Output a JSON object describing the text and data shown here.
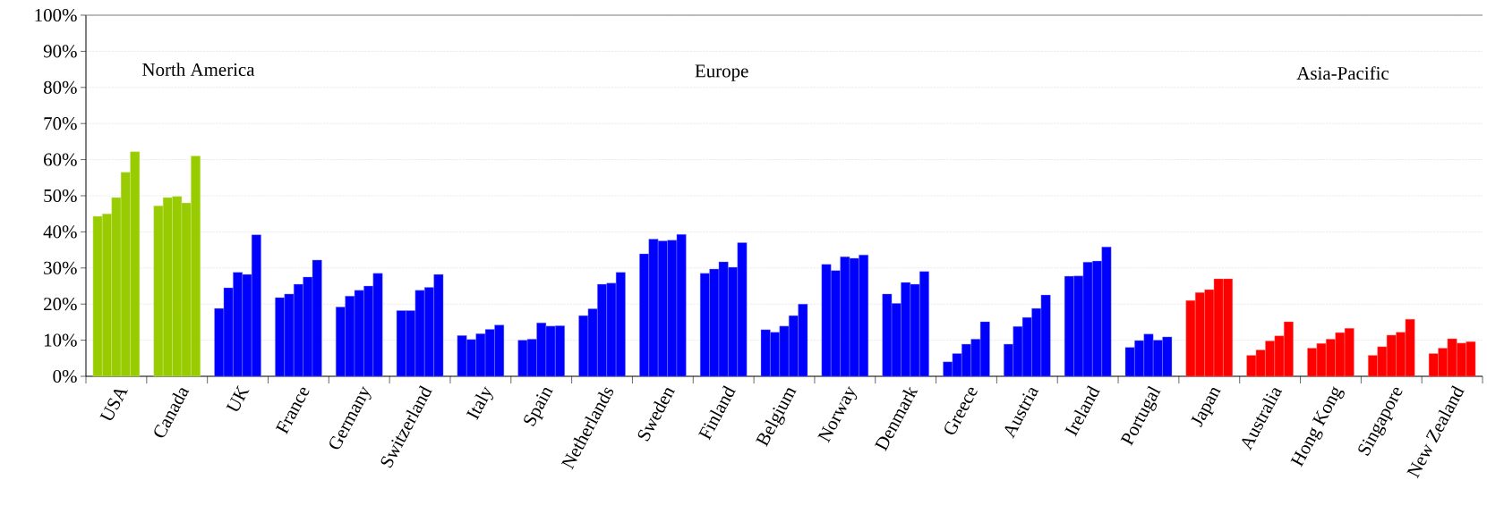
{
  "chart_data": {
    "type": "bar",
    "categories": [
      "USA",
      "Canada",
      "UK",
      "France",
      "Germany",
      "Switzerland",
      "Italy",
      "Spain",
      "Netherlands",
      "Sweden",
      "Finland",
      "Belgium",
      "Norway",
      "Denmark",
      "Greece",
      "Austria",
      "Ireland",
      "Portugal",
      "Japan",
      "Australia",
      "Hong Kong",
      "Singapore",
      "New Zealand"
    ],
    "series": [
      {
        "colors": [
          "#99cc00",
          "#99cc00",
          "#0000ff",
          "#0000ff",
          "#0000ff",
          "#0000ff",
          "#0000ff",
          "#0000ff",
          "#0000ff",
          "#0000ff",
          "#0000ff",
          "#0000ff",
          "#0000ff",
          "#0000ff",
          "#0000ff",
          "#0000ff",
          "#0000ff",
          "#0000ff",
          "#ff0000",
          "#ff0000",
          "#ff0000",
          "#ff0000",
          "#ff0000"
        ],
        "values": [
          44.3,
          47.2,
          18.8,
          21.8,
          19.2,
          18.2,
          11.3,
          10,
          16.8,
          33.9,
          28.5,
          12.9,
          31,
          22.8,
          4,
          8.9,
          27.7,
          8,
          21,
          5.8,
          7.8,
          5.8,
          6.3
        ]
      },
      {
        "colors": [
          "#99cc00",
          "#99cc00",
          "#0000ff",
          "#0000ff",
          "#0000ff",
          "#0000ff",
          "#0000ff",
          "#0000ff",
          "#0000ff",
          "#0000ff",
          "#0000ff",
          "#0000ff",
          "#0000ff",
          "#0000ff",
          "#0000ff",
          "#0000ff",
          "#0000ff",
          "#0000ff",
          "#ff0000",
          "#ff0000",
          "#ff0000",
          "#ff0000",
          "#ff0000"
        ],
        "values": [
          45,
          49.5,
          24.5,
          22.8,
          22.2,
          18.2,
          10.2,
          10.3,
          18.7,
          38,
          29.7,
          12.2,
          29.3,
          20.2,
          6.3,
          13.8,
          27.8,
          9.9,
          23.2,
          7.3,
          9.1,
          8.2,
          7.8
        ]
      },
      {
        "colors": [
          "#99cc00",
          "#99cc00",
          "#0000ff",
          "#0000ff",
          "#0000ff",
          "#0000ff",
          "#0000ff",
          "#0000ff",
          "#0000ff",
          "#0000ff",
          "#0000ff",
          "#0000ff",
          "#0000ff",
          "#0000ff",
          "#0000ff",
          "#0000ff",
          "#0000ff",
          "#0000ff",
          "#ff0000",
          "#ff0000",
          "#ff0000",
          "#ff0000",
          "#ff0000"
        ],
        "values": [
          49.5,
          49.8,
          28.8,
          25.5,
          23.8,
          23.8,
          11.8,
          14.8,
          25.5,
          37.5,
          31.7,
          13.9,
          33.1,
          26,
          8.9,
          16.3,
          31.6,
          11.7,
          24,
          9.8,
          10.3,
          11.4,
          10.4
        ]
      },
      {
        "colors": [
          "#99cc00",
          "#99cc00",
          "#0000ff",
          "#0000ff",
          "#0000ff",
          "#0000ff",
          "#0000ff",
          "#0000ff",
          "#0000ff",
          "#0000ff",
          "#0000ff",
          "#0000ff",
          "#0000ff",
          "#0000ff",
          "#0000ff",
          "#0000ff",
          "#0000ff",
          "#0000ff",
          "#ff0000",
          "#ff0000",
          "#ff0000",
          "#ff0000",
          "#ff0000"
        ],
        "values": [
          56.5,
          48,
          28.2,
          27.5,
          25,
          24.6,
          13,
          13.9,
          25.8,
          37.7,
          30.2,
          16.8,
          32.7,
          25.5,
          10.3,
          18.8,
          31.9,
          10,
          27,
          11.2,
          12.1,
          12.2,
          9.2
        ]
      },
      {
        "colors": [
          "#99cc00",
          "#99cc00",
          "#0000ff",
          "#0000ff",
          "#0000ff",
          "#0000ff",
          "#0000ff",
          "#0000ff",
          "#0000ff",
          "#0000ff",
          "#0000ff",
          "#0000ff",
          "#0000ff",
          "#0000ff",
          "#0000ff",
          "#0000ff",
          "#0000ff",
          "#0000ff",
          "#ff0000",
          "#ff0000",
          "#ff0000",
          "#ff0000",
          "#ff0000"
        ],
        "values": [
          62.2,
          61,
          39.2,
          32.2,
          28.5,
          28.2,
          14.2,
          14,
          28.8,
          39.3,
          37,
          20,
          33.6,
          29,
          15.1,
          22.5,
          35.8,
          10.9,
          27,
          15.1,
          13.3,
          15.8,
          9.6
        ]
      }
    ],
    "ylim": [
      0,
      100
    ],
    "yticks": [
      {
        "value": 0,
        "label": "0%"
      },
      {
        "value": 10,
        "label": "10%"
      },
      {
        "value": 20,
        "label": "20%"
      },
      {
        "value": 30,
        "label": "30%"
      },
      {
        "value": 40,
        "label": "40%"
      },
      {
        "value": 50,
        "label": "50%"
      },
      {
        "value": 60,
        "label": "60%"
      },
      {
        "value": 70,
        "label": "70%"
      },
      {
        "value": 80,
        "label": "80%"
      },
      {
        "value": 90,
        "label": "90%"
      },
      {
        "value": 100,
        "label": "100%"
      }
    ],
    "grid": "y",
    "annotations": [
      "North America",
      "Europe",
      "Asia-Pacific"
    ]
  }
}
